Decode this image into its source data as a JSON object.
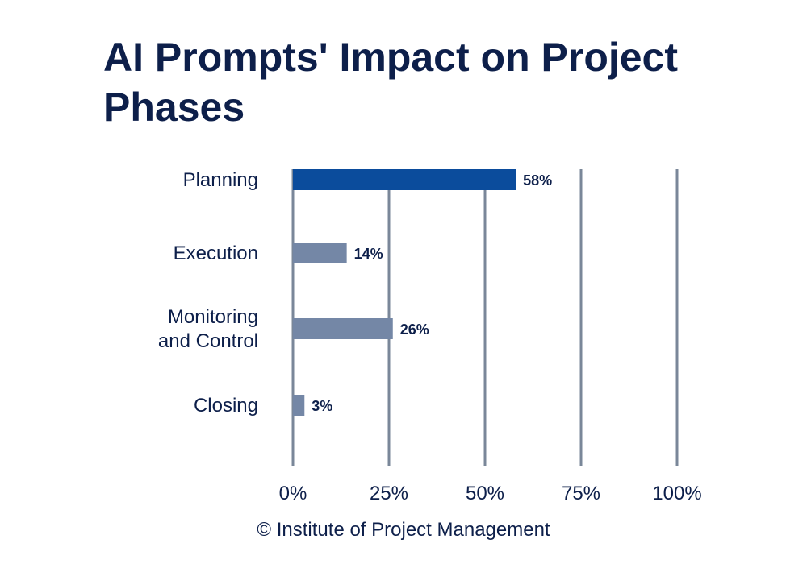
{
  "chart_data": {
    "type": "bar",
    "orientation": "horizontal",
    "title": "AI Prompts' Impact on Project Phases",
    "categories": [
      "Planning",
      "Execution",
      "Monitoring and Control",
      "Closing"
    ],
    "category_label_lines": [
      [
        "Planning"
      ],
      [
        "Execution"
      ],
      [
        "Monitoring",
        "and Control"
      ],
      [
        "Closing"
      ]
    ],
    "values": [
      58,
      14,
      26,
      3
    ],
    "value_labels": [
      "58%",
      "14%",
      "26%",
      "3%"
    ],
    "xlim": [
      0,
      100
    ],
    "x_ticks": [
      0,
      25,
      50,
      75,
      100
    ],
    "x_tick_labels": [
      "0%",
      "25%",
      "50%",
      "75%",
      "100%"
    ],
    "grid": "vertical",
    "highlight_index": 0,
    "colors": {
      "highlight": "#0b4c9c",
      "default": "#7487a6",
      "grid": "#7a8799",
      "text": "#0d1f4a"
    }
  },
  "source": "© Institute of Project Management"
}
